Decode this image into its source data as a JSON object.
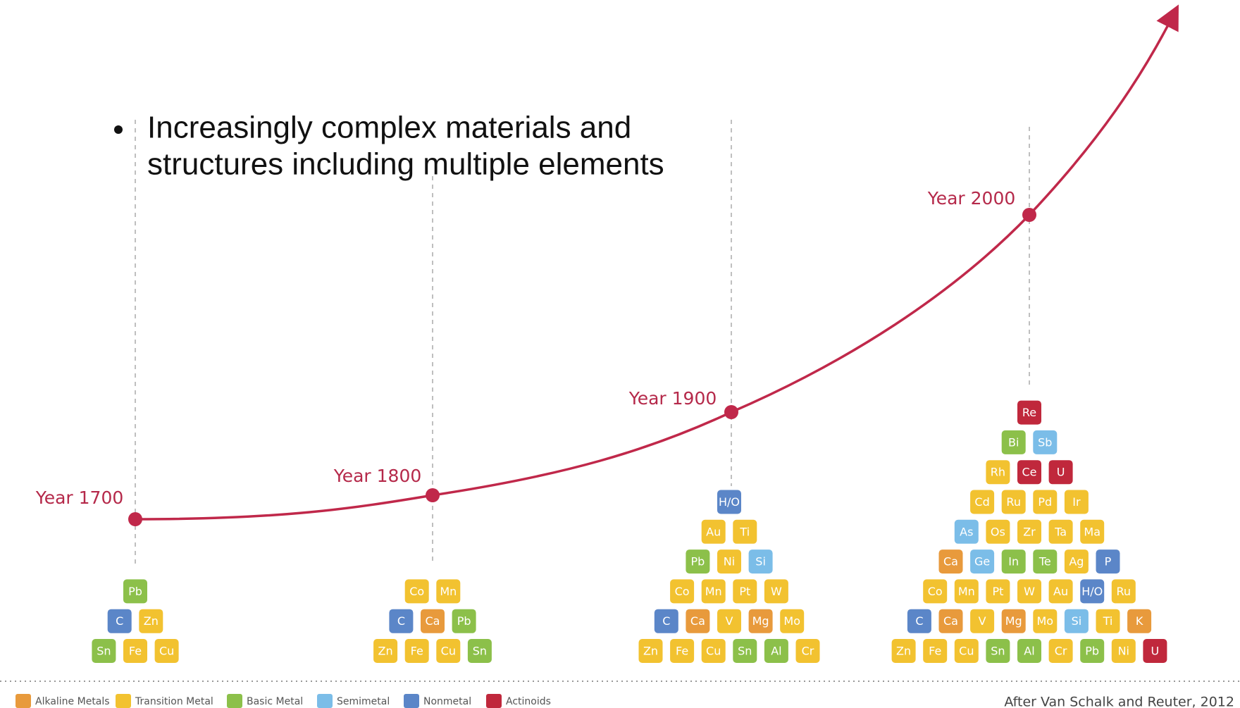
{
  "bullet": [
    "Increasingly complex materials and",
    "structures including multiple elements"
  ],
  "legend": [
    {
      "name": "Alkaline Metals",
      "color": "#e89a3c"
    },
    {
      "name": "Transition Metal",
      "color": "#f2c230"
    },
    {
      "name": "Basic Metal",
      "color": "#8cc04a"
    },
    {
      "name": "Semimetal",
      "color": "#7bbde8"
    },
    {
      "name": "Nonmetal",
      "color": "#5b86c8"
    },
    {
      "name": "Actinoids",
      "color": "#c0283c"
    }
  ],
  "milestones": [
    {
      "label": "Year 1700",
      "rows": [
        [
          {
            "symbol": "Pb",
            "group": "Basic Metal"
          }
        ],
        [
          {
            "symbol": "C",
            "group": "Nonmetal"
          },
          {
            "symbol": "Zn",
            "group": "Transition Metal"
          }
        ],
        [
          {
            "symbol": "Sn",
            "group": "Basic Metal"
          },
          {
            "symbol": "Fe",
            "group": "Transition Metal"
          },
          {
            "symbol": "Cu",
            "group": "Transition Metal"
          }
        ]
      ]
    },
    {
      "label": "Year 1800",
      "rows": [
        [
          {
            "symbol": "Co",
            "group": "Transition Metal"
          },
          {
            "symbol": "Mn",
            "group": "Transition Metal"
          }
        ],
        [
          {
            "symbol": "C",
            "group": "Nonmetal"
          },
          {
            "symbol": "Ca",
            "group": "Alkaline Metals"
          },
          {
            "symbol": "Pb",
            "group": "Basic Metal"
          }
        ],
        [
          {
            "symbol": "Zn",
            "group": "Transition Metal"
          },
          {
            "symbol": "Fe",
            "group": "Transition Metal"
          },
          {
            "symbol": "Cu",
            "group": "Transition Metal"
          },
          {
            "symbol": "Sn",
            "group": "Basic Metal"
          }
        ]
      ]
    },
    {
      "label": "Year 1900",
      "rows": [
        [
          {
            "symbol": "H/O",
            "group": "Nonmetal"
          }
        ],
        [
          {
            "symbol": "Au",
            "group": "Transition Metal"
          },
          {
            "symbol": "Ti",
            "group": "Transition Metal"
          }
        ],
        [
          {
            "symbol": "Pb",
            "group": "Basic Metal"
          },
          {
            "symbol": "Ni",
            "group": "Transition Metal"
          },
          {
            "symbol": "Si",
            "group": "Semimetal"
          }
        ],
        [
          {
            "symbol": "Co",
            "group": "Transition Metal"
          },
          {
            "symbol": "Mn",
            "group": "Transition Metal"
          },
          {
            "symbol": "Pt",
            "group": "Transition Metal"
          },
          {
            "symbol": "W",
            "group": "Transition Metal"
          }
        ],
        [
          {
            "symbol": "C",
            "group": "Nonmetal"
          },
          {
            "symbol": "Ca",
            "group": "Alkaline Metals"
          },
          {
            "symbol": "V",
            "group": "Transition Metal"
          },
          {
            "symbol": "Mg",
            "group": "Alkaline Metals"
          },
          {
            "symbol": "Mo",
            "group": "Transition Metal"
          }
        ],
        [
          {
            "symbol": "Zn",
            "group": "Transition Metal"
          },
          {
            "symbol": "Fe",
            "group": "Transition Metal"
          },
          {
            "symbol": "Cu",
            "group": "Transition Metal"
          },
          {
            "symbol": "Sn",
            "group": "Basic Metal"
          },
          {
            "symbol": "Al",
            "group": "Basic Metal"
          },
          {
            "symbol": "Cr",
            "group": "Transition Metal"
          }
        ]
      ]
    },
    {
      "label": "Year 2000",
      "rows": [
        [
          {
            "symbol": "Re",
            "group": "Actinoids"
          }
        ],
        [
          {
            "symbol": "Bi",
            "group": "Basic Metal"
          },
          {
            "symbol": "Sb",
            "group": "Semimetal"
          }
        ],
        [
          {
            "symbol": "Rh",
            "group": "Transition Metal"
          },
          {
            "symbol": "Ce",
            "group": "Actinoids"
          },
          {
            "symbol": "U",
            "group": "Actinoids"
          }
        ],
        [
          {
            "symbol": "Cd",
            "group": "Transition Metal"
          },
          {
            "symbol": "Ru",
            "group": "Transition Metal"
          },
          {
            "symbol": "Pd",
            "group": "Transition Metal"
          },
          {
            "symbol": "Ir",
            "group": "Transition Metal"
          }
        ],
        [
          {
            "symbol": "As",
            "group": "Semimetal"
          },
          {
            "symbol": "Os",
            "group": "Transition Metal"
          },
          {
            "symbol": "Zr",
            "group": "Transition Metal"
          },
          {
            "symbol": "Ta",
            "group": "Transition Metal"
          },
          {
            "symbol": "Ma",
            "group": "Transition Metal"
          }
        ],
        [
          {
            "symbol": "Ca",
            "group": "Alkaline Metals"
          },
          {
            "symbol": "Ge",
            "group": "Semimetal"
          },
          {
            "symbol": "In",
            "group": "Basic Metal"
          },
          {
            "symbol": "Te",
            "group": "Basic Metal"
          },
          {
            "symbol": "Ag",
            "group": "Transition Metal"
          },
          {
            "symbol": "P",
            "group": "Nonmetal"
          }
        ],
        [
          {
            "symbol": "Co",
            "group": "Transition Metal"
          },
          {
            "symbol": "Mn",
            "group": "Transition Metal"
          },
          {
            "symbol": "Pt",
            "group": "Transition Metal"
          },
          {
            "symbol": "W",
            "group": "Transition Metal"
          },
          {
            "symbol": "Au",
            "group": "Transition Metal"
          },
          {
            "symbol": "H/O",
            "group": "Nonmetal"
          },
          {
            "symbol": "Ru",
            "group": "Transition Metal"
          }
        ],
        [
          {
            "symbol": "C",
            "group": "Nonmetal"
          },
          {
            "symbol": "Ca",
            "group": "Alkaline Metals"
          },
          {
            "symbol": "V",
            "group": "Transition Metal"
          },
          {
            "symbol": "Mg",
            "group": "Alkaline Metals"
          },
          {
            "symbol": "Mo",
            "group": "Transition Metal"
          },
          {
            "symbol": "Si",
            "group": "Semimetal"
          },
          {
            "symbol": "Ti",
            "group": "Transition Metal"
          },
          {
            "symbol": "K",
            "group": "Alkaline Metals"
          }
        ],
        [
          {
            "symbol": "Zn",
            "group": "Transition Metal"
          },
          {
            "symbol": "Fe",
            "group": "Transition Metal"
          },
          {
            "symbol": "Cu",
            "group": "Transition Metal"
          },
          {
            "symbol": "Sn",
            "group": "Basic Metal"
          },
          {
            "symbol": "Al",
            "group": "Basic Metal"
          },
          {
            "symbol": "Cr",
            "group": "Transition Metal"
          },
          {
            "symbol": "Pb",
            "group": "Basic Metal"
          },
          {
            "symbol": "Ni",
            "group": "Transition Metal"
          },
          {
            "symbol": "U",
            "group": "Actinoids"
          }
        ]
      ]
    }
  ],
  "credit": "After Van Schalk and Reuter, 2012"
}
